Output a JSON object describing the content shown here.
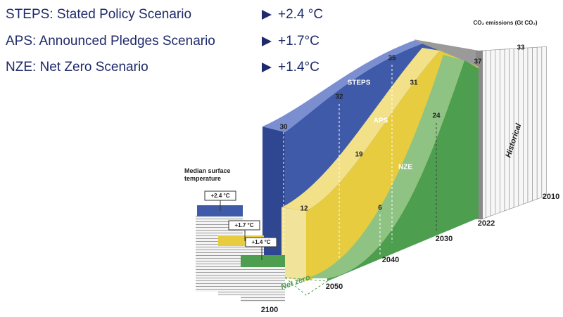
{
  "legend": [
    {
      "name": "STEPS: Stated Policy Scenario",
      "value": "+2.4 °C"
    },
    {
      "name": "APS: Announced Pledges Scenario",
      "value": "+1.7°C"
    },
    {
      "name": "NZE: Net Zero Scenario",
      "value": "+1.4°C"
    }
  ],
  "axis_title": "CO₂ emissions (Gt CO₂)",
  "historical": {
    "label": "Historical",
    "start": 33,
    "end": 37
  },
  "scenarios": [
    {
      "name": "STEPS",
      "values": [
        30,
        32,
        35
      ]
    },
    {
      "name": "APS",
      "values": [
        12,
        19,
        31
      ]
    },
    {
      "name": "NZE",
      "values": [
        6,
        24
      ]
    }
  ],
  "years": [
    "2010",
    "2022",
    "2030",
    "2040",
    "2050",
    "2100"
  ],
  "net_zero": "Net zero",
  "temperature": {
    "title": "Median surface temperature",
    "labels": [
      "+2.4 °C",
      "+1.7 °C",
      "+1.4 °C"
    ]
  }
}
